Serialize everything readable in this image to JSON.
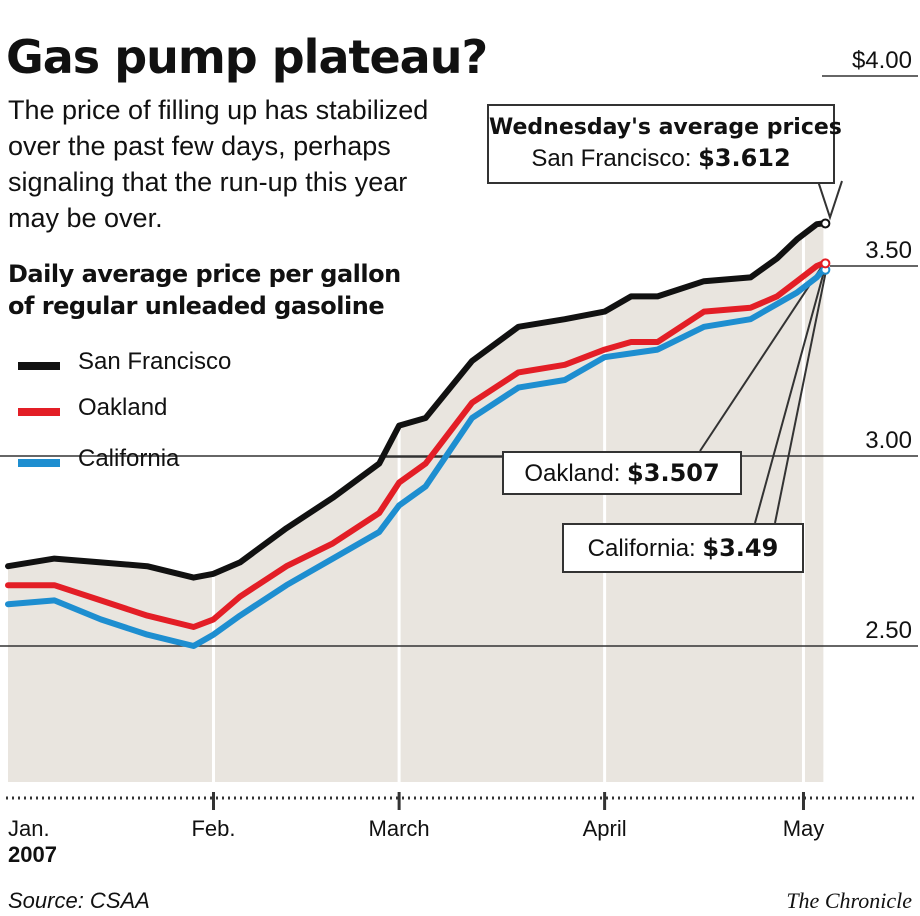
{
  "title": "Gas pump plateau?",
  "subtitle": "The price of filling up has stabilized over the past few days, perhaps signaling that the run-up this year may be over.",
  "source": "Source: CSAA",
  "brand": "The Chronicle",
  "callouts": {
    "header": "Wednesday's average prices",
    "sf_label": "San Francisco:",
    "sf_value": "$3.612",
    "oak_label": "Oakland:",
    "oak_value": "$3.507",
    "ca_label": "California:",
    "ca_value": "$3.49"
  },
  "chart_data": {
    "type": "line",
    "ylabel": "Daily average price per gallon of regular unleaded gasoline",
    "ylim": [
      2.0,
      4.0
    ],
    "y_ticks": [
      2.5,
      3.0,
      3.5,
      4.0
    ],
    "y_tick_labels": [
      "2.50",
      "3.00",
      "3.50",
      "$4.00"
    ],
    "x_ticks": [
      0,
      31,
      59,
      90,
      120
    ],
    "x_tick_labels": [
      "Jan.",
      "Feb.",
      "March",
      "April",
      "May"
    ],
    "x_sublabel": "2007",
    "x_domain": [
      0,
      124
    ],
    "grid": true,
    "legend_position": "left",
    "colors": {
      "San Francisco": "#111111",
      "Oakland": "#e31e26",
      "California": "#1e8ed0"
    },
    "x": [
      0,
      7,
      14,
      21,
      28,
      31,
      35,
      42,
      49,
      56,
      59,
      63,
      70,
      77,
      84,
      90,
      94,
      98,
      105,
      112,
      116,
      119,
      122,
      123
    ],
    "series": [
      {
        "name": "San Francisco",
        "values": [
          2.71,
          2.73,
          2.72,
          2.71,
          2.68,
          2.69,
          2.72,
          2.81,
          2.89,
          2.98,
          3.08,
          3.1,
          3.25,
          3.34,
          3.36,
          3.38,
          3.42,
          3.42,
          3.46,
          3.47,
          3.52,
          3.57,
          3.61,
          3.612
        ]
      },
      {
        "name": "Oakland",
        "values": [
          2.66,
          2.66,
          2.62,
          2.58,
          2.55,
          2.57,
          2.63,
          2.71,
          2.77,
          2.85,
          2.93,
          2.98,
          3.14,
          3.22,
          3.24,
          3.28,
          3.3,
          3.3,
          3.38,
          3.39,
          3.42,
          3.46,
          3.5,
          3.507
        ]
      },
      {
        "name": "California",
        "values": [
          2.61,
          2.62,
          2.57,
          2.53,
          2.5,
          2.53,
          2.58,
          2.66,
          2.73,
          2.8,
          2.87,
          2.92,
          3.1,
          3.18,
          3.2,
          3.26,
          3.27,
          3.28,
          3.34,
          3.36,
          3.4,
          3.43,
          3.47,
          3.49
        ]
      }
    ]
  }
}
